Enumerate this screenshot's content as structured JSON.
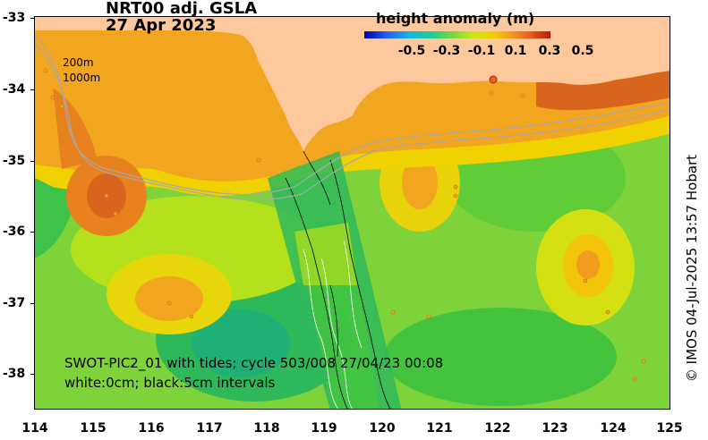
{
  "title": {
    "line1": "NRT00 adj. GSLA",
    "line2": "27 Apr 2023"
  },
  "isobath_labels": [
    "200m",
    "1000m"
  ],
  "colorbar": {
    "title": "height anomaly (m)",
    "ticks": [
      "-0.5",
      "-0.3",
      "-0.1",
      "0.1",
      "0.3",
      "0.5"
    ],
    "range": [
      -0.5,
      0.5
    ],
    "colors": [
      "#0000b4",
      "#1f5ff0",
      "#19b4e6",
      "#1ecc96",
      "#7ed63c",
      "#c8e619",
      "#f0d200",
      "#f5a01e",
      "#e8641e",
      "#b41e0a"
    ]
  },
  "swot": {
    "line1": "SWOT-PIC2_01 with tides; cycle 503/008  27/04/23 00:08",
    "line2": "white:0cm; black:5cm intervals"
  },
  "axes": {
    "x_ticks": [
      "114",
      "115",
      "116",
      "117",
      "118",
      "119",
      "120",
      "121",
      "122",
      "123",
      "124",
      "125"
    ],
    "y_ticks": [
      "-33",
      "-34",
      "-35",
      "-36",
      "-37",
      "-38"
    ],
    "lon_range": [
      114,
      125
    ],
    "lat_range": [
      -33,
      -38.5
    ]
  },
  "credit": "© IMOS 04-Jul-2025 13:57 Hobart",
  "colors": {
    "land": "#fdc89b",
    "ocean_base": "#7fd33a",
    "isobath": "#a8a8a8"
  }
}
